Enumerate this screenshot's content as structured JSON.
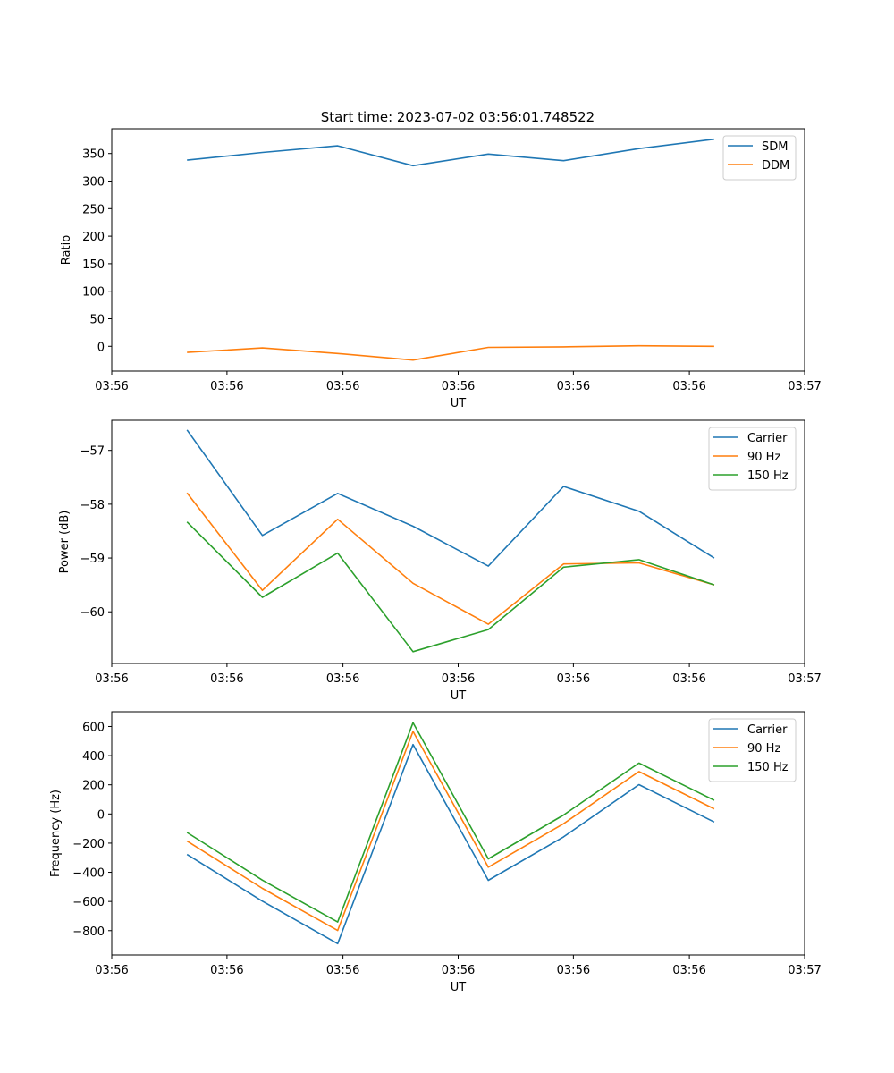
{
  "chart_data": [
    {
      "type": "line",
      "title": "Start time: 2023-07-02 03:56:01.748522",
      "xlabel": "UT",
      "ylabel": "Ratio",
      "x_tick_labels": [
        "03:56",
        "03:56",
        "03:56",
        "03:56",
        "03:56",
        "03:56",
        "03:57"
      ],
      "x": [
        1,
        2,
        3,
        4,
        5,
        6,
        7,
        8
      ],
      "xlim": [
        0,
        9.2
      ],
      "x_tick_positions": [
        0,
        1.53,
        3.07,
        4.6,
        6.13,
        7.67,
        9.2
      ],
      "ylim": [
        -45,
        395
      ],
      "yticks": [
        0,
        50,
        100,
        150,
        200,
        250,
        300,
        350
      ],
      "y_tick_labels": [
        "0",
        "50",
        "100",
        "150",
        "200",
        "250",
        "300",
        "350"
      ],
      "series": [
        {
          "name": "SDM",
          "color": "#1f77b4",
          "values": [
            338,
            352,
            364,
            328,
            349,
            337,
            359,
            376
          ]
        },
        {
          "name": "DDM",
          "color": "#ff7f0e",
          "values": [
            -11,
            -3,
            -13,
            -25,
            -2,
            -1,
            1,
            0
          ]
        }
      ],
      "legend": "top-right"
    },
    {
      "type": "line",
      "title": "",
      "xlabel": "UT",
      "ylabel": "Power (dB)",
      "x_tick_labels": [
        "03:56",
        "03:56",
        "03:56",
        "03:56",
        "03:56",
        "03:56",
        "03:57"
      ],
      "x": [
        1,
        2,
        3,
        4,
        5,
        6,
        7,
        8
      ],
      "xlim": [
        0,
        9.2
      ],
      "x_tick_positions": [
        0,
        1.53,
        3.07,
        4.6,
        6.13,
        7.67,
        9.2
      ],
      "ylim": [
        -60.96,
        -56.44
      ],
      "yticks": [
        -60,
        -59,
        -58,
        -57
      ],
      "y_tick_labels": [
        "−60",
        "−59",
        "−58",
        "−57"
      ],
      "series": [
        {
          "name": "Carrier",
          "color": "#1f77b4",
          "values": [
            -56.62,
            -58.58,
            -57.8,
            -58.41,
            -59.15,
            -57.67,
            -58.13,
            -59.0
          ]
        },
        {
          "name": "90 Hz",
          "color": "#ff7f0e",
          "values": [
            -57.79,
            -59.6,
            -58.28,
            -59.47,
            -60.23,
            -59.11,
            -59.09,
            -59.5
          ]
        },
        {
          "name": "150 Hz",
          "color": "#2ca02c",
          "values": [
            -58.33,
            -59.73,
            -58.91,
            -60.74,
            -60.33,
            -59.17,
            -59.03,
            -59.5
          ]
        }
      ],
      "legend": "top-right"
    },
    {
      "type": "line",
      "title": "",
      "xlabel": "UT",
      "ylabel": "Frequency (Hz)",
      "x_tick_labels": [
        "03:56",
        "03:56",
        "03:56",
        "03:56",
        "03:56",
        "03:56",
        "03:57"
      ],
      "x": [
        1,
        2,
        3,
        4,
        5,
        6,
        7,
        8
      ],
      "xlim": [
        0,
        9.2
      ],
      "x_tick_positions": [
        0,
        1.53,
        3.07,
        4.6,
        6.13,
        7.67,
        9.2
      ],
      "ylim": [
        -967,
        701
      ],
      "yticks": [
        -800,
        -600,
        -400,
        -200,
        0,
        200,
        400,
        600
      ],
      "y_tick_labels": [
        "−800",
        "−600",
        "−400",
        "−200",
        "0",
        "200",
        "400",
        "600"
      ],
      "series": [
        {
          "name": "Carrier",
          "color": "#1f77b4",
          "values": [
            -278,
            -598,
            -889,
            476,
            -455,
            -157,
            201,
            -55
          ]
        },
        {
          "name": "90 Hz",
          "color": "#ff7f0e",
          "values": [
            -186,
            -510,
            -799,
            566,
            -365,
            -67,
            291,
            35
          ]
        },
        {
          "name": "150 Hz",
          "color": "#2ca02c",
          "values": [
            -127,
            -454,
            -741,
            626,
            -308,
            -7,
            349,
            94
          ]
        }
      ],
      "legend": "top-right"
    }
  ]
}
